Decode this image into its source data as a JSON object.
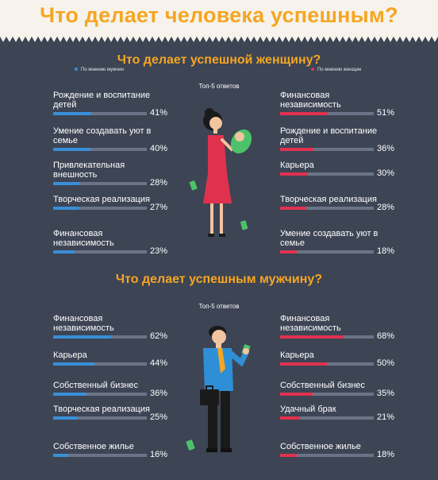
{
  "title": "Что делает человека успешным?",
  "colors": {
    "men": "#3a8fd8",
    "women": "#e0324f",
    "accent": "#f5a623"
  },
  "chart_data": [
    {
      "type": "bar",
      "title": "Что делает успешной женщину?",
      "subtitle": "Топ-5 ответов",
      "series": [
        {
          "name": "По мнению мужчин",
          "categories": [
            "Рождение и воспитание детей",
            "Умение создавать уют в семье",
            "Привлекательная внешность",
            "Творческая реализация",
            "Финансовая независимость"
          ],
          "values": [
            41,
            40,
            28,
            27,
            23
          ]
        },
        {
          "name": "По мнению женщин",
          "categories": [
            "Финансовая независимость",
            "Рождение и воспитание детей",
            "Карьера",
            "Творческая реализация",
            "Умение создавать уют в семье"
          ],
          "values": [
            51,
            36,
            30,
            28,
            18
          ]
        }
      ],
      "unit": "%"
    },
    {
      "type": "bar",
      "title": "Что делает успешным мужчину?",
      "subtitle": "Топ-5 ответов",
      "series": [
        {
          "name": "",
          "categories": [
            "Финансовая независимость",
            "Карьера",
            "Собственный бизнес",
            "Творческая реализация",
            "Собственное жилье"
          ],
          "values": [
            62,
            44,
            36,
            25,
            16
          ]
        },
        {
          "name": "",
          "categories": [
            "Финансовая независимость",
            "Карьера",
            "Собственный бизнес",
            "Удачный брак",
            "Собственное жилье"
          ],
          "values": [
            68,
            50,
            35,
            21,
            18
          ]
        }
      ],
      "unit": "%"
    }
  ]
}
